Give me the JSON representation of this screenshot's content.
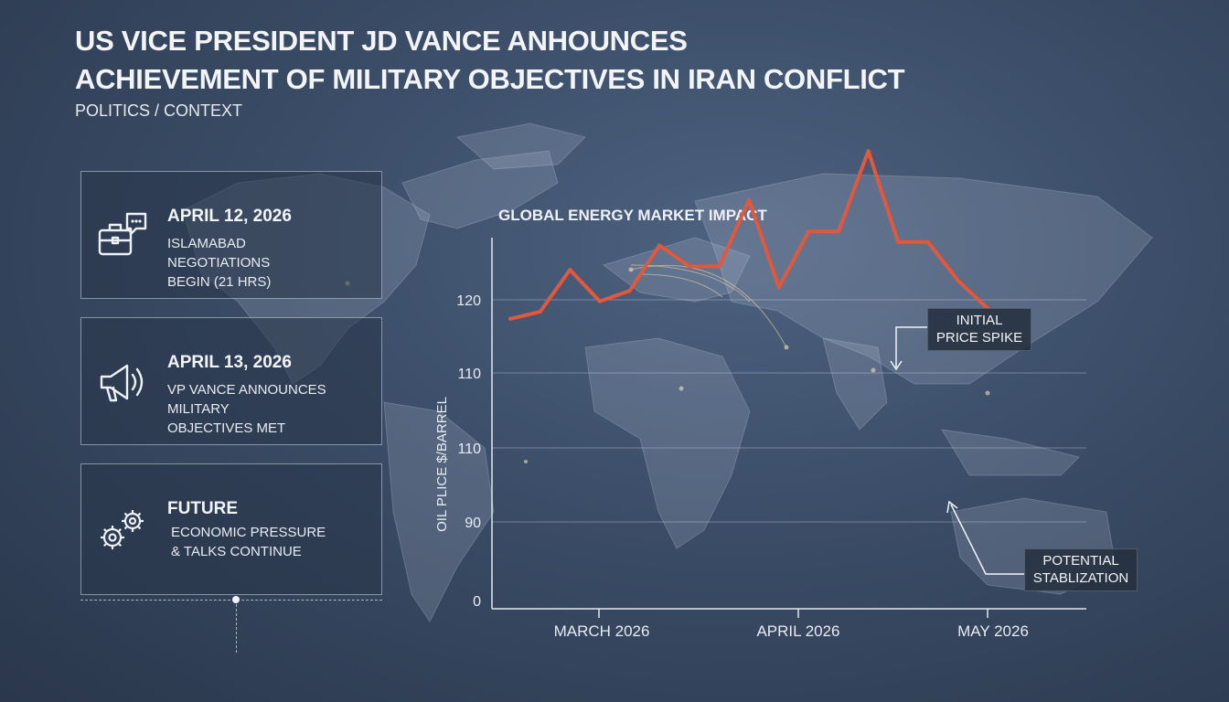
{
  "header": {
    "title_line1": "US VICE PRESIDENT JD VANCE ANHOUNCES",
    "title_line2": "ACHIEVEMENT OF MILITARY OBJECTIVES IN IRAN CONFLICT",
    "category": "POLITICS / CONTEXT"
  },
  "timeline": [
    {
      "icon": "briefcase-chat-icon",
      "date": "APRIL 12, 2026",
      "lines": [
        "ISLAMABAD",
        "NEGOTIATIONS",
        "BEGIN (21 HRS)"
      ]
    },
    {
      "icon": "megaphone-icon",
      "date": "APRIL 13, 2026",
      "lines": [
        "VP VANCE ANNOUNCES",
        "MILITARY",
        "OBJECTIVES MET"
      ]
    },
    {
      "icon": "gears-icon",
      "date": "FUTURE",
      "lines": [
        "ECONOMIC PRESSURE",
        "& TALKS CONTINUE"
      ]
    }
  ],
  "chart_data": {
    "type": "line",
    "title": "GLOBAL ENERGY MARKET IMPACT",
    "ylabel": "OIL PLICE $/BARREL",
    "yticks": [
      "0",
      "90",
      "110",
      "110",
      "120"
    ],
    "xticks": [
      "MARCH 2026",
      "APRIL 2026",
      "MAY 2026"
    ],
    "ylim": [
      0,
      135
    ],
    "grid": true,
    "line_color": "#e2583c",
    "series": [
      {
        "values": [
          83,
          85,
          97,
          88,
          91,
          104,
          98,
          98,
          117,
          92,
          108,
          108,
          131,
          105,
          105,
          94,
          86
        ]
      }
    ],
    "annotations": [
      {
        "lines": [
          "INITIAL",
          "PRICE SPIKE"
        ]
      },
      {
        "lines": [
          "POTENTIAL",
          "STABLIZATION"
        ]
      }
    ]
  }
}
